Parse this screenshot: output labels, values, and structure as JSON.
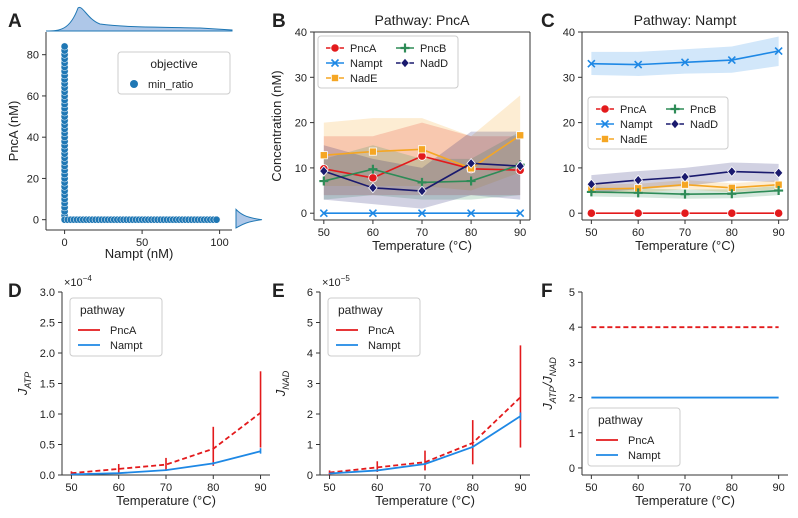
{
  "figure": {
    "panel_letters": [
      "A",
      "B",
      "C",
      "D",
      "E",
      "F"
    ]
  },
  "chart_data": [
    {
      "panel": "A",
      "type": "scatter",
      "xlabel": "Nampt (nM)",
      "ylabel": "PncA (nM)",
      "xticks": [
        0,
        50,
        100
      ],
      "yticks": [
        0,
        20,
        40,
        60,
        80
      ],
      "xlim": [
        -12,
        108
      ],
      "ylim": [
        -5,
        91
      ],
      "legend": {
        "title": "objective",
        "entries": [
          "min_ratio"
        ],
        "placement": "top-right"
      },
      "color": "#1f77b4",
      "marginals": "kde on top and right",
      "series": [
        {
          "values_vertical_branch": {
            "x": 0,
            "y": [
              0,
              2,
              4,
              6,
              8,
              10,
              12,
              14,
              16,
              18,
              20,
              22,
              24,
              26,
              28,
              30,
              32,
              34,
              36,
              38,
              40,
              42,
              44,
              46,
              48,
              50,
              52,
              54,
              56,
              58,
              60,
              62,
              64,
              66,
              68,
              70,
              72,
              74,
              76,
              78,
              80,
              82,
              84
            ]
          },
          "values_horizontal_branch": {
            "y": 0,
            "x": [
              0,
              2,
              4,
              6,
              8,
              10,
              12,
              14,
              16,
              18,
              20,
              22,
              24,
              26,
              28,
              30,
              32,
              34,
              36,
              38,
              40,
              42,
              44,
              46,
              48,
              50,
              52,
              54,
              56,
              58,
              60,
              62,
              64,
              66,
              68,
              70,
              72,
              74,
              76,
              78,
              80,
              82,
              84,
              86,
              88,
              90,
              92,
              94,
              96,
              98
            ]
          }
        }
      ]
    },
    {
      "panel": "B",
      "type": "line",
      "title": "Pathway: PncA",
      "xlabel": "Temperature (°C)",
      "ylabel": "Concentration (nM)",
      "x": [
        50,
        60,
        70,
        80,
        90
      ],
      "xlim": [
        48,
        92
      ],
      "ylim": [
        -1.5,
        40
      ],
      "yticks": [
        0,
        10,
        20,
        30,
        40
      ],
      "legend_placement": "top-left, two columns",
      "series": [
        {
          "name": "PncA",
          "color": "#e31a1c",
          "marker": "circle",
          "values": [
            9.8,
            7.8,
            12.6,
            9.8,
            9.5
          ],
          "band_low": [
            4,
            4,
            4,
            4,
            4
          ],
          "band_high": [
            17,
            17,
            20,
            17,
            17
          ]
        },
        {
          "name": "Nampt",
          "color": "#1e88e5",
          "marker": "x",
          "values": [
            0,
            0,
            0,
            0,
            0
          ],
          "band_low": [
            0,
            0,
            0,
            0,
            0
          ],
          "band_high": [
            0,
            0,
            0,
            0,
            0
          ]
        },
        {
          "name": "NadE",
          "color": "#f5a623",
          "marker": "square",
          "values": [
            12.8,
            13.6,
            14.1,
            9.9,
            17.2
          ],
          "band_low": [
            6,
            6,
            6,
            5,
            9
          ],
          "band_high": [
            20,
            21,
            21,
            17,
            26
          ]
        },
        {
          "name": "PncB",
          "color": "#2e8b57",
          "marker": "plus",
          "values": [
            7.1,
            9.7,
            6.8,
            7.1,
            10.7
          ],
          "band_low": [
            3,
            4,
            3,
            3,
            4
          ],
          "band_high": [
            12,
            15,
            12,
            12,
            18
          ]
        },
        {
          "name": "NadD",
          "color": "#1a1a6e",
          "marker": "diamond",
          "values": [
            9.3,
            5.6,
            4.9,
            11.0,
            10.4
          ],
          "band_low": [
            3,
            2,
            1,
            4,
            3
          ],
          "band_high": [
            15,
            12,
            10,
            18,
            18
          ]
        }
      ]
    },
    {
      "panel": "C",
      "type": "line",
      "title": "Pathway: Nampt",
      "xlabel": "Temperature (°C)",
      "ylabel": "",
      "x": [
        50,
        60,
        70,
        80,
        90
      ],
      "xlim": [
        48,
        92
      ],
      "ylim": [
        -1.5,
        40
      ],
      "yticks": [
        0,
        10,
        20,
        30,
        40
      ],
      "legend_placement": "center-left, two columns",
      "series": [
        {
          "name": "PncA",
          "color": "#e31a1c",
          "marker": "circle",
          "values": [
            0,
            0,
            0,
            0,
            0
          ],
          "band_low": [
            0,
            0,
            0,
            0,
            0
          ],
          "band_high": [
            0,
            0,
            0,
            0,
            0
          ]
        },
        {
          "name": "Nampt",
          "color": "#1e88e5",
          "marker": "x",
          "values": [
            33.0,
            32.8,
            33.3,
            33.8,
            35.8
          ],
          "band_low": [
            30.5,
            30.3,
            30.8,
            31.0,
            32.5
          ],
          "band_high": [
            35.6,
            35.6,
            36.2,
            36.8,
            39.0
          ]
        },
        {
          "name": "NadE",
          "color": "#f5a623",
          "marker": "square",
          "values": [
            5.3,
            5.5,
            6.3,
            5.6,
            6.3
          ],
          "band_low": [
            4.3,
            4.5,
            5.3,
            4.6,
            5.3
          ],
          "band_high": [
            6.3,
            6.5,
            7.3,
            6.6,
            7.3
          ]
        },
        {
          "name": "PncB",
          "color": "#2e8b57",
          "marker": "plus",
          "values": [
            4.7,
            4.5,
            4.2,
            4.3,
            5.0
          ],
          "band_low": [
            3.7,
            3.5,
            3.2,
            3.3,
            4.0
          ],
          "band_high": [
            5.7,
            5.5,
            5.2,
            5.3,
            6.0
          ]
        },
        {
          "name": "NadD",
          "color": "#1a1a6e",
          "marker": "diamond",
          "values": [
            6.4,
            7.3,
            8.0,
            9.2,
            8.9
          ],
          "band_low": [
            4.4,
            5.3,
            6.0,
            7.2,
            6.9
          ],
          "band_high": [
            8.4,
            9.3,
            10.0,
            11.2,
            10.9
          ]
        }
      ]
    },
    {
      "panel": "D",
      "type": "line",
      "ylabel": "J",
      "ylabel_sub": "ATP",
      "xlabel": "Temperature (°C)",
      "scale_label": "×10",
      "scale_exp": "−4",
      "x": [
        50,
        60,
        70,
        80,
        90
      ],
      "xlim": [
        48,
        92
      ],
      "ylim": [
        0,
        3.0
      ],
      "yticks": [
        "0.0",
        "0.5",
        "1.0",
        "1.5",
        "2.0",
        "2.5",
        "3.0"
      ],
      "legend": {
        "title": "pathway",
        "entries": [
          "PncA",
          "Nampt"
        ],
        "placement": "top-left"
      },
      "series": [
        {
          "name": "PncA",
          "color": "#e31a1c",
          "dashed": true,
          "values": [
            0.03,
            0.1,
            0.17,
            0.43,
            1.02
          ],
          "err_low": [
            0.0,
            0.03,
            0.08,
            0.15,
            0.45
          ],
          "err_high": [
            0.06,
            0.18,
            0.28,
            0.79,
            1.7
          ]
        },
        {
          "name": "Nampt",
          "color": "#1e88e5",
          "dashed": false,
          "values": [
            0.01,
            0.03,
            0.08,
            0.19,
            0.39
          ],
          "err_low": [
            0.0,
            0.02,
            0.07,
            0.17,
            0.35
          ],
          "err_high": [
            0.02,
            0.04,
            0.09,
            0.21,
            0.44
          ]
        }
      ]
    },
    {
      "panel": "E",
      "type": "line",
      "ylabel": "J",
      "ylabel_sub": "NAD",
      "xlabel": "Temperature (°C)",
      "scale_label": "×10",
      "scale_exp": "−5",
      "x": [
        50,
        60,
        70,
        80,
        90
      ],
      "xlim": [
        48,
        92
      ],
      "ylim": [
        0,
        6
      ],
      "yticks": [
        "0",
        "1",
        "2",
        "3",
        "4",
        "5",
        "6"
      ],
      "legend": {
        "title": "pathway",
        "entries": [
          "PncA",
          "Nampt"
        ],
        "placement": "top-left"
      },
      "series": [
        {
          "name": "PncA",
          "color": "#e31a1c",
          "dashed": true,
          "values": [
            0.08,
            0.25,
            0.42,
            1.05,
            2.55
          ],
          "err_low": [
            0.0,
            0.1,
            0.15,
            0.35,
            0.9
          ],
          "err_high": [
            0.15,
            0.45,
            0.8,
            1.8,
            4.25
          ]
        },
        {
          "name": "Nampt",
          "color": "#1e88e5",
          "dashed": false,
          "values": [
            0.05,
            0.15,
            0.36,
            0.92,
            1.93
          ],
          "err_low": [
            0.03,
            0.12,
            0.33,
            0.88,
            1.8
          ],
          "err_high": [
            0.07,
            0.18,
            0.4,
            0.96,
            2.05
          ]
        }
      ]
    },
    {
      "panel": "F",
      "type": "line",
      "ylabel": "J",
      "ylabel_sub1": "ATP",
      "ylabel_sub2": "NAD",
      "xlabel": "Temperature (°C)",
      "x": [
        50,
        60,
        70,
        80,
        90
      ],
      "xlim": [
        48,
        92
      ],
      "ylim": [
        -0.2,
        5
      ],
      "yticks": [
        "0",
        "1",
        "2",
        "3",
        "4",
        "5"
      ],
      "legend": {
        "title": "pathway",
        "entries": [
          "PncA",
          "Nampt"
        ],
        "placement": "bottom-left"
      },
      "series": [
        {
          "name": "PncA",
          "color": "#e31a1c",
          "dashed": true,
          "values": [
            4,
            4,
            4,
            4,
            4
          ]
        },
        {
          "name": "Nampt",
          "color": "#1e88e5",
          "dashed": false,
          "values": [
            2,
            2,
            2,
            2,
            2
          ]
        }
      ]
    }
  ]
}
